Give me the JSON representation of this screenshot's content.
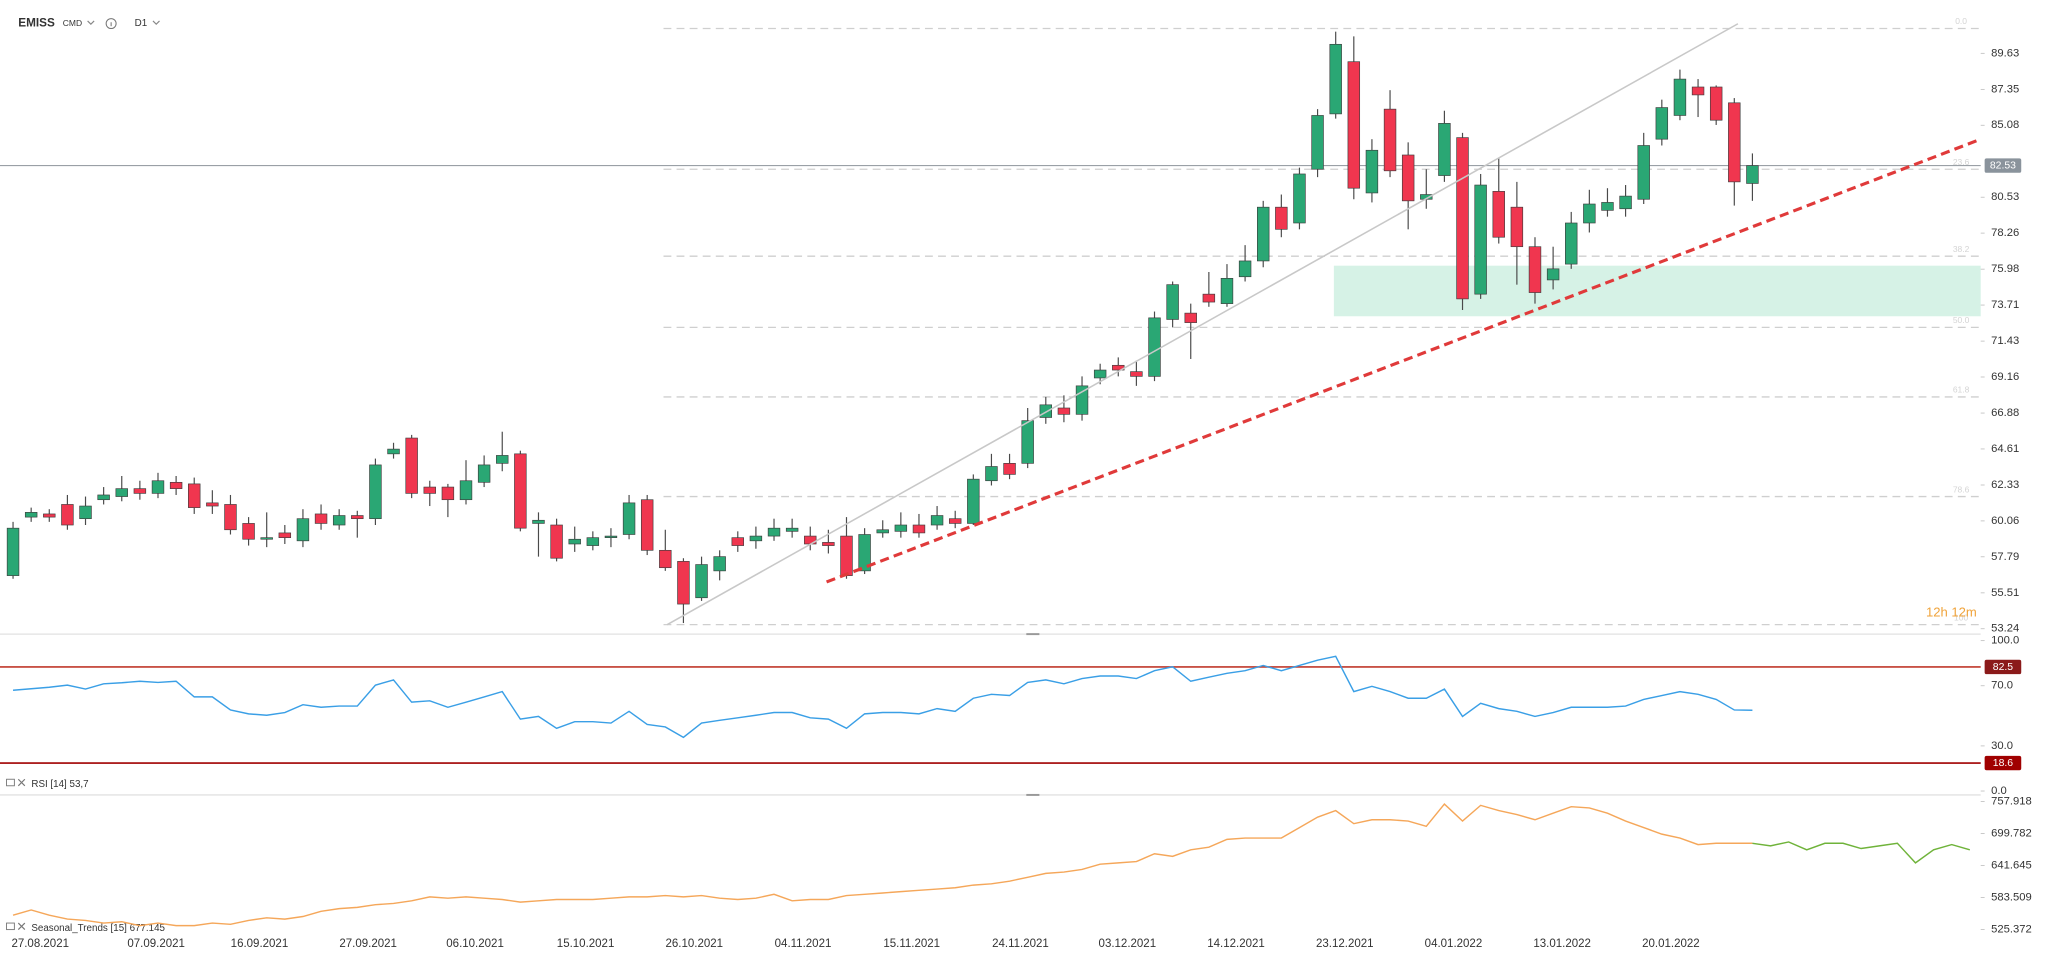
{
  "header": {
    "symbol": "EMISS",
    "market": "CMD",
    "interval": "D1"
  },
  "chart_data": [
    {
      "type": "candlestick",
      "xlim": [
        -0.72,
        108.6
      ],
      "ylim": [
        52.9,
        93.0
      ],
      "yticks": [
        89.63,
        87.35,
        85.08,
        80.53,
        78.26,
        75.98,
        73.71,
        71.43,
        69.16,
        66.88,
        64.61,
        62.33,
        60.06,
        57.79,
        55.51,
        53.24
      ],
      "up_color": "#2aa774",
      "down_color": "#f0364f",
      "open": [
        56.6,
        60.3,
        60.5,
        61.1,
        60.2,
        61.4,
        61.6,
        62.1,
        61.8,
        62.5,
        62.4,
        61.2,
        61.1,
        59.9,
        58.9,
        59.3,
        58.8,
        60.5,
        59.8,
        60.4,
        60.2,
        64.3,
        65.3,
        62.2,
        62.2,
        61.4,
        62.5,
        63.7,
        64.3,
        59.9,
        59.8,
        58.6,
        58.5,
        59.0,
        59.2,
        61.4,
        58.2,
        57.5,
        55.2,
        56.9,
        59.0,
        58.8,
        59.1,
        59.4,
        59.1,
        58.7,
        59.1,
        56.9,
        59.3,
        59.4,
        59.8,
        59.8,
        60.2,
        59.9,
        62.6,
        63.7,
        63.7,
        66.6,
        67.2,
        66.8,
        69.1,
        69.9,
        69.5,
        69.2,
        72.8,
        73.2,
        74.4,
        73.8,
        75.5,
        76.5,
        79.9,
        78.9,
        82.3,
        85.8,
        89.1,
        80.8,
        86.1,
        83.2,
        80.4,
        81.9,
        84.3,
        74.4,
        80.9,
        79.9,
        77.4,
        75.3,
        76.3,
        78.9,
        79.7,
        79.8,
        80.4,
        84.2,
        85.7,
        87.5,
        87.5,
        86.5,
        81.4
      ],
      "high": [
        60.0,
        60.9,
        60.8,
        61.7,
        61.6,
        62.2,
        62.9,
        62.6,
        63.1,
        62.9,
        62.8,
        62.0,
        61.7,
        60.3,
        60.6,
        59.8,
        60.8,
        61.1,
        60.8,
        60.7,
        64.0,
        65.0,
        65.5,
        62.6,
        62.4,
        63.9,
        64.2,
        65.7,
        64.5,
        60.6,
        60.2,
        59.7,
        59.4,
        59.6,
        61.7,
        61.7,
        59.5,
        57.7,
        57.8,
        58.2,
        59.4,
        59.7,
        60.2,
        60.2,
        59.7,
        59.5,
        60.3,
        59.6,
        60.1,
        60.6,
        60.5,
        61.0,
        60.7,
        63.0,
        64.3,
        64.3,
        67.2,
        67.9,
        68.0,
        69.2,
        70.0,
        70.4,
        70.2,
        73.3,
        75.2,
        73.8,
        75.8,
        76.3,
        77.5,
        80.3,
        80.7,
        82.4,
        86.1,
        91.0,
        90.7,
        84.2,
        87.3,
        84.0,
        82.3,
        86.0,
        84.6,
        82.0,
        83.0,
        81.5,
        78.0,
        77.4,
        79.6,
        81.0,
        81.1,
        81.3,
        84.6,
        86.7,
        88.6,
        88.0,
        87.6,
        86.8,
        83.3
      ],
      "low": [
        56.4,
        60.0,
        60.0,
        59.5,
        59.8,
        61.1,
        61.3,
        61.4,
        61.5,
        61.7,
        60.5,
        60.5,
        59.2,
        58.5,
        58.4,
        58.6,
        58.4,
        59.5,
        59.5,
        59.0,
        59.8,
        64.0,
        61.5,
        61.0,
        60.3,
        61.1,
        62.2,
        63.2,
        59.4,
        57.8,
        57.5,
        58.1,
        58.2,
        58.4,
        58.9,
        57.9,
        56.9,
        53.6,
        55.0,
        56.3,
        58.1,
        58.3,
        58.8,
        59.0,
        58.2,
        58.0,
        56.4,
        56.7,
        59.0,
        59.0,
        59.0,
        59.5,
        59.6,
        59.8,
        62.3,
        62.7,
        63.4,
        66.2,
        66.3,
        66.4,
        68.7,
        69.2,
        68.6,
        68.9,
        72.3,
        70.3,
        73.6,
        73.6,
        75.2,
        76.1,
        78.0,
        78.5,
        81.8,
        85.5,
        80.4,
        80.2,
        81.8,
        78.5,
        79.8,
        81.5,
        73.4,
        74.1,
        77.6,
        75.0,
        73.8,
        74.7,
        76.0,
        78.3,
        79.3,
        79.3,
        80.1,
        83.8,
        85.4,
        85.6,
        85.1,
        80.0,
        80.3
      ],
      "close": [
        59.6,
        60.6,
        60.3,
        59.8,
        61.0,
        61.7,
        62.1,
        61.8,
        62.6,
        62.1,
        60.9,
        61.0,
        59.5,
        58.9,
        59.0,
        59.0,
        60.2,
        59.9,
        60.4,
        60.2,
        63.6,
        64.6,
        61.8,
        61.8,
        61.4,
        62.6,
        63.6,
        64.2,
        59.6,
        60.1,
        57.7,
        58.9,
        59.0,
        59.1,
        61.2,
        58.2,
        57.1,
        54.8,
        57.3,
        57.8,
        58.5,
        59.1,
        59.6,
        59.6,
        58.6,
        58.5,
        56.6,
        59.2,
        59.5,
        59.8,
        59.3,
        60.4,
        59.9,
        62.7,
        63.5,
        63.0,
        66.4,
        67.4,
        66.8,
        68.6,
        69.6,
        69.6,
        69.2,
        72.9,
        75.0,
        72.6,
        73.9,
        75.4,
        76.5,
        79.9,
        78.5,
        82.0,
        85.7,
        90.2,
        81.1,
        83.5,
        82.2,
        80.3,
        80.7,
        85.2,
        74.1,
        81.3,
        78.0,
        77.4,
        74.5,
        76.0,
        78.9,
        80.1,
        80.2,
        80.6,
        83.8,
        86.2,
        88.0,
        87.0,
        85.4,
        81.5,
        82.53
      ],
      "last_price": 82.53,
      "last_price_color": "#8a939c",
      "fibonacci": {
        "x": [
          35.9,
          108.6
        ],
        "levels": [
          {
            "value": 91.2,
            "label": "0.0"
          },
          {
            "value": 82.3,
            "label": "23.6"
          },
          {
            "value": 76.8,
            "label": "38.2"
          },
          {
            "value": 72.3,
            "label": "50.0"
          },
          {
            "value": 67.9,
            "label": "61.8"
          },
          {
            "value": 61.6,
            "label": "78.6"
          },
          {
            "value": 53.5,
            "label": "100"
          }
        ]
      },
      "zone": {
        "x": [
          72.9,
          108.6
        ],
        "y": [
          73.0,
          76.2
        ],
        "color": "#c8eedd"
      },
      "trendlines": [
        {
          "x": [
            36.1,
            95.2
          ],
          "y": [
            53.5,
            91.5
          ],
          "color": "#c8c8c8",
          "style": "solid"
        },
        {
          "x": [
            44.9,
            108.6
          ],
          "y": [
            56.2,
            84.2
          ],
          "color": "#e03a3a",
          "style": "dashed"
        }
      ],
      "countdown": "12h 12m"
    },
    {
      "type": "line",
      "label": "RSI [14] 53,7",
      "xlim": [
        -0.72,
        108.6
      ],
      "ylim": [
        -2.6,
        102.6
      ],
      "yticks": [
        {
          "value": 100,
          "label": "100.0"
        },
        {
          "value": 70,
          "label": "70.0"
        },
        {
          "value": 30,
          "label": "30.0"
        },
        {
          "value": 0,
          "label": "0.0"
        }
      ],
      "levels": [
        {
          "value": 82.5,
          "color": "#c0392b",
          "tag_color": "#8b1a1a"
        },
        {
          "value": 18.6,
          "color": "#a00000",
          "tag_color": "#a00000"
        }
      ],
      "series": [
        {
          "color": "#3a9fe6",
          "values": [
            67.0,
            68.0,
            69.0,
            70.4,
            67.8,
            71.3,
            72.0,
            73.0,
            72.2,
            73.0,
            62.6,
            62.6,
            53.9,
            51.3,
            50.4,
            52.2,
            57.4,
            55.7,
            56.5,
            56.5,
            70.4,
            73.9,
            59.1,
            60.0,
            55.7,
            59.1,
            62.6,
            66.1,
            47.8,
            49.6,
            41.7,
            46.1,
            46.1,
            45.2,
            53.0,
            44.3,
            42.6,
            35.7,
            45.2,
            47.0,
            48.7,
            50.4,
            52.2,
            52.2,
            48.7,
            47.8,
            41.7,
            51.3,
            52.2,
            52.2,
            51.3,
            54.8,
            53.0,
            61.7,
            64.3,
            63.5,
            72.2,
            73.9,
            71.3,
            74.8,
            76.5,
            76.5,
            74.8,
            80.0,
            82.6,
            73.0,
            75.7,
            78.3,
            80.0,
            83.5,
            80.0,
            83.5,
            87.0,
            89.6,
            66.1,
            69.6,
            66.1,
            61.7,
            61.7,
            67.8,
            49.6,
            58.3,
            54.8,
            53.0,
            49.6,
            52.2,
            55.7,
            55.7,
            55.7,
            56.5,
            60.9,
            63.5,
            66.1,
            64.3,
            60.9,
            53.9,
            53.7
          ]
        }
      ]
    },
    {
      "type": "line",
      "label": "Seasonal_Trends [15] 677.145",
      "xlim": [
        -0.72,
        108.6
      ],
      "ylim": [
        520.6,
        765.0
      ],
      "yticks": [
        757.918,
        699.782,
        641.645,
        583.509,
        525.372
      ],
      "xticks": [
        {
          "value": 1.5,
          "label": "27.08.2021"
        },
        {
          "value": 7.9,
          "label": "07.09.2021"
        },
        {
          "value": 13.6,
          "label": "16.09.2021"
        },
        {
          "value": 19.6,
          "label": "27.09.2021"
        },
        {
          "value": 25.5,
          "label": "06.10.2021"
        },
        {
          "value": 31.6,
          "label": "15.10.2021"
        },
        {
          "value": 37.6,
          "label": "26.10.2021"
        },
        {
          "value": 43.6,
          "label": "04.11.2021"
        },
        {
          "value": 49.6,
          "label": "15.11.2021"
        },
        {
          "value": 55.6,
          "label": "24.11.2021"
        },
        {
          "value": 61.5,
          "label": "03.12.2021"
        },
        {
          "value": 67.5,
          "label": "14.12.2021"
        },
        {
          "value": 73.5,
          "label": "23.12.2021"
        },
        {
          "value": 79.5,
          "label": "04.01.2022"
        },
        {
          "value": 85.5,
          "label": "13.01.2022"
        },
        {
          "value": 91.5,
          "label": "20.01.2022"
        }
      ],
      "series": [
        {
          "color": "#f5a75a",
          "values": [
            551.5,
            561.0,
            551.5,
            544.4,
            542.0,
            537.2,
            539.6,
            532.5,
            537.2,
            532.5,
            532.5,
            537.2,
            534.9,
            542.0,
            546.7,
            544.4,
            549.1,
            558.6,
            563.4,
            565.7,
            570.5,
            572.8,
            577.6,
            584.7,
            582.3,
            584.7,
            582.3,
            580.0,
            575.2,
            577.6,
            580.0,
            580.0,
            580.0,
            582.3,
            584.7,
            584.7,
            587.1,
            584.7,
            587.1,
            582.3,
            580.0,
            582.3,
            589.4,
            577.6,
            580.0,
            580.0,
            587.1,
            589.4,
            591.8,
            594.2,
            596.6,
            598.9,
            601.3,
            606.1,
            608.4,
            613.2,
            620.3,
            627.4,
            629.8,
            634.5,
            644.0,
            646.4,
            648.8,
            663.0,
            658.3,
            670.1,
            674.9,
            689.1,
            691.5,
            691.5,
            691.5,
            710.5,
            729.4,
            741.3,
            717.6,
            724.7,
            724.7,
            722.3,
            712.8,
            753.2,
            722.3,
            750.8,
            741.3,
            734.2,
            724.7,
            736.6,
            748.4,
            746.1,
            736.6,
            722.3,
            710.5,
            698.6,
            691.5,
            679.6,
            682.0,
            682.0,
            682.0
          ]
        },
        {
          "color": "#6fb33a",
          "x": [
            96,
            97,
            98,
            99,
            100,
            101,
            102,
            103,
            104,
            105,
            106,
            107,
            108
          ],
          "values": [
            682.0,
            677.3,
            684.4,
            670.1,
            682.0,
            682.0,
            672.5,
            677.3,
            682.0,
            646.4,
            670.1,
            679.6,
            670.1
          ]
        }
      ]
    }
  ]
}
